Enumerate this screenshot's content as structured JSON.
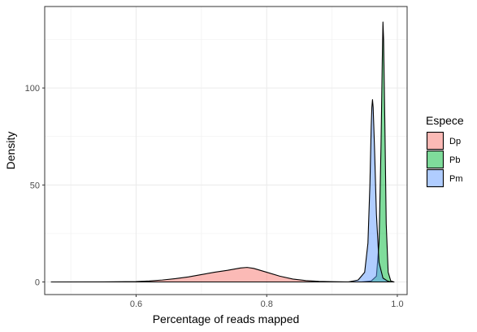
{
  "chart_data": {
    "type": "area",
    "subtype": "density",
    "title": "",
    "xlabel": "Percentage of reads mapped",
    "ylabel": "Density",
    "xlim": [
      0.46,
      1.015
    ],
    "ylim": [
      -6.5,
      142
    ],
    "x_ticks": [
      0.6,
      0.8,
      1.0
    ],
    "x_tick_labels": [
      "0.6",
      "0.8",
      "1.0"
    ],
    "y_ticks": [
      0,
      50,
      100
    ],
    "y_tick_labels": [
      "0",
      "50",
      "100"
    ],
    "grid": true,
    "legend": {
      "title": "Espece",
      "placement": "right"
    },
    "series": [
      {
        "name": "Dp",
        "color": "#F8766D",
        "points": [
          [
            0.47,
            0
          ],
          [
            0.55,
            0.05
          ],
          [
            0.6,
            0.2
          ],
          [
            0.62,
            0.5
          ],
          [
            0.64,
            1.0
          ],
          [
            0.66,
            1.7
          ],
          [
            0.68,
            2.6
          ],
          [
            0.7,
            3.8
          ],
          [
            0.72,
            5.0
          ],
          [
            0.74,
            6.0
          ],
          [
            0.76,
            7.2
          ],
          [
            0.77,
            7.5
          ],
          [
            0.78,
            7.0
          ],
          [
            0.8,
            5.0
          ],
          [
            0.82,
            3.0
          ],
          [
            0.84,
            1.5
          ],
          [
            0.86,
            0.7
          ],
          [
            0.88,
            0.3
          ],
          [
            0.9,
            0.15
          ],
          [
            0.92,
            0.05
          ],
          [
            0.95,
            0.0
          ],
          [
            0.99,
            0.0
          ]
        ]
      },
      {
        "name": "Pb",
        "color": "#00BA38",
        "points": [
          [
            0.945,
            0
          ],
          [
            0.96,
            0.5
          ],
          [
            0.968,
            3
          ],
          [
            0.972,
            20
          ],
          [
            0.975,
            70
          ],
          [
            0.977,
            115
          ],
          [
            0.978,
            134
          ],
          [
            0.979,
            125
          ],
          [
            0.981,
            80
          ],
          [
            0.983,
            30
          ],
          [
            0.986,
            5
          ],
          [
            0.99,
            0.5
          ],
          [
            0.995,
            0
          ]
        ]
      },
      {
        "name": "Pm",
        "color": "#619CFF",
        "points": [
          [
            0.925,
            0
          ],
          [
            0.94,
            1
          ],
          [
            0.95,
            5
          ],
          [
            0.955,
            20
          ],
          [
            0.958,
            50
          ],
          [
            0.96,
            80
          ],
          [
            0.961,
            90
          ],
          [
            0.962,
            94
          ],
          [
            0.963,
            90
          ],
          [
            0.965,
            70
          ],
          [
            0.968,
            35
          ],
          [
            0.972,
            10
          ],
          [
            0.978,
            2
          ],
          [
            0.985,
            0.5
          ],
          [
            0.99,
            0
          ]
        ]
      }
    ]
  }
}
